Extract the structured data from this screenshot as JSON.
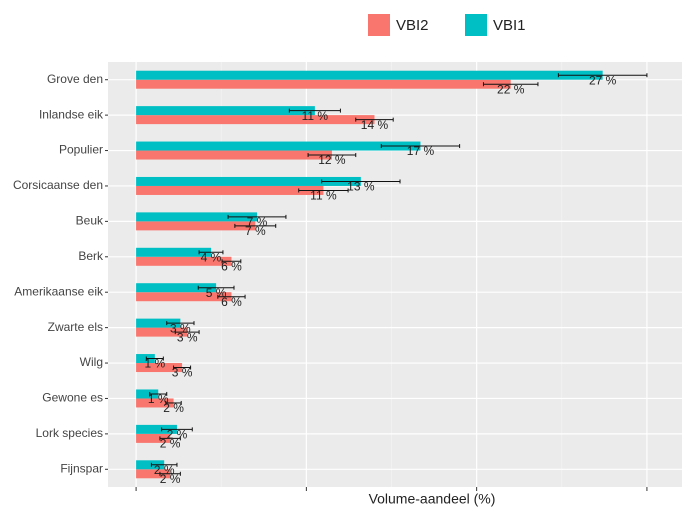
{
  "chart_data": {
    "type": "bar",
    "orientation": "horizontal",
    "x_label": "Volume-aandeel (%)",
    "categories": [
      "Grove den",
      "Inlandse eik",
      "Populier",
      "Corsicaanse den",
      "Beuk",
      "Berk",
      "Amerikaanse eik",
      "Zwarte els",
      "Wilg",
      "Gewone es",
      "Lork species",
      "Fijnspar"
    ],
    "series": [
      {
        "name": "VBI2",
        "color": "#F8766D",
        "values": [
          22.0,
          14.0,
          11.5,
          11.0,
          7.0,
          5.6,
          5.6,
          3.0,
          2.7,
          2.2,
          2.0,
          2.0
        ],
        "errors": [
          1.6,
          1.1,
          1.4,
          1.45,
          1.2,
          0.55,
          0.8,
          0.7,
          0.5,
          0.45,
          0.6,
          0.6
        ],
        "value_labels": [
          "22 %",
          "14 %",
          "12 %",
          "11 %",
          "7 %",
          "6 %",
          "6 %",
          "3 %",
          "3 %",
          "2 %",
          "2 %",
          "2 %"
        ]
      },
      {
        "name": "VBI1",
        "color": "#00BFC4",
        "values": [
          27.4,
          10.5,
          16.7,
          13.2,
          7.1,
          4.4,
          4.7,
          2.6,
          1.1,
          1.3,
          2.4,
          1.65
        ],
        "errors": [
          2.6,
          1.5,
          2.3,
          2.3,
          1.7,
          0.7,
          1.05,
          0.8,
          0.5,
          0.5,
          0.9,
          0.75
        ],
        "value_labels": [
          "27 %",
          "11 %",
          "17 %",
          "13 %",
          "7 %",
          "4 %",
          "5 %",
          "3 %",
          "1 %",
          "1 %",
          "2 %",
          "2 %"
        ]
      }
    ],
    "xlim": [
      -1.65,
      32.06
    ],
    "xticks": [
      0,
      10,
      20,
      30
    ],
    "grid": true,
    "legend": "top"
  }
}
